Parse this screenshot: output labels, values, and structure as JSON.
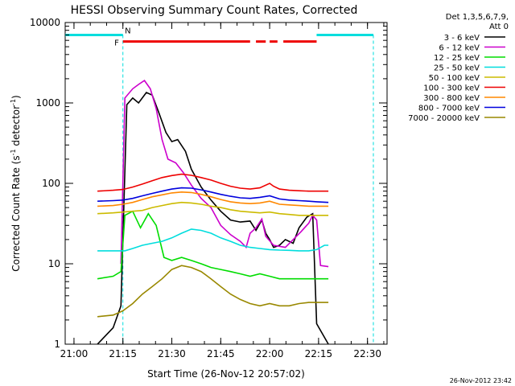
{
  "chart_data": {
    "type": "line",
    "title": "HESSI Observing Summary Count Rates, Corrected",
    "xlabel": "Start Time (26-Nov-12 20:57:02)",
    "ylabel_main": "Corrected Count Rate (s",
    "ylabel_sup1": "-1",
    "ylabel_mid": " detector",
    "ylabel_sup2": "-1",
    "ylabel_end": ")",
    "footer_timestamp": "26-Nov-2012 23:42",
    "y_log": true,
    "ylim": [
      1,
      10000
    ],
    "xlim": [
      20.955,
      22.6
    ],
    "x_ticks": [
      {
        "v": 21.0,
        "label": "21:00"
      },
      {
        "v": 21.25,
        "label": "21:15"
      },
      {
        "v": 21.5,
        "label": "21:30"
      },
      {
        "v": 21.75,
        "label": "21:45"
      },
      {
        "v": 22.0,
        "label": "22:00"
      },
      {
        "v": 22.25,
        "label": "22:15"
      },
      {
        "v": 22.5,
        "label": "22:30"
      }
    ],
    "y_ticks": [
      {
        "v": 1,
        "label": "1"
      },
      {
        "v": 10,
        "label": "10"
      },
      {
        "v": 100,
        "label": "100"
      },
      {
        "v": 1000,
        "label": "1000"
      },
      {
        "v": 10000,
        "label": "10000"
      }
    ],
    "legend_header": [
      "Det 1,3,5,6,7,9,",
      "Att 0"
    ],
    "legend_position": "top-right, outside plot",
    "flag_labels": {
      "F": "F",
      "N": "N"
    },
    "flags": {
      "night_bar": [
        [
          20.955,
          21.25
        ],
        [
          22.24,
          22.53
        ]
      ],
      "night_bar_y": 7000,
      "night_edges": [
        21.25,
        22.53
      ],
      "flare_bar": [
        [
          21.25,
          21.9
        ],
        [
          21.93,
          21.98
        ],
        [
          22.0,
          22.04
        ],
        [
          22.07,
          22.24
        ]
      ],
      "flare_bar_y": 5800,
      "flare_label_x": 21.23,
      "night_label_x": 21.26
    },
    "series": [
      {
        "name": "3 - 6 keV",
        "color": "#000000",
        "points": [
          [
            21.12,
            1
          ],
          [
            21.2,
            1.6
          ],
          [
            21.24,
            3
          ],
          [
            21.27,
            950
          ],
          [
            21.3,
            1150
          ],
          [
            21.33,
            1000
          ],
          [
            21.37,
            1350
          ],
          [
            21.4,
            1250
          ],
          [
            21.43,
            800
          ],
          [
            21.47,
            430
          ],
          [
            21.5,
            330
          ],
          [
            21.53,
            350
          ],
          [
            21.57,
            250
          ],
          [
            21.6,
            150
          ],
          [
            21.65,
            90
          ],
          [
            21.7,
            62
          ],
          [
            21.75,
            45
          ],
          [
            21.8,
            35
          ],
          [
            21.85,
            33
          ],
          [
            21.9,
            34
          ],
          [
            21.93,
            26
          ],
          [
            21.96,
            35
          ],
          [
            21.98,
            24
          ],
          [
            22.0,
            20
          ],
          [
            22.02,
            16
          ],
          [
            22.05,
            17
          ],
          [
            22.08,
            20
          ],
          [
            22.12,
            18
          ],
          [
            22.15,
            28
          ],
          [
            22.19,
            38
          ],
          [
            22.22,
            42
          ],
          [
            22.24,
            1.8
          ],
          [
            22.3,
            1
          ]
        ]
      },
      {
        "name": "6 - 12 keV",
        "color": "#cc00cc",
        "points": [
          [
            21.24,
            10
          ],
          [
            21.26,
            1150
          ],
          [
            21.3,
            1500
          ],
          [
            21.33,
            1700
          ],
          [
            21.36,
            1900
          ],
          [
            21.39,
            1500
          ],
          [
            21.42,
            850
          ],
          [
            21.45,
            350
          ],
          [
            21.48,
            200
          ],
          [
            21.52,
            180
          ],
          [
            21.56,
            135
          ],
          [
            21.6,
            95
          ],
          [
            21.65,
            65
          ],
          [
            21.7,
            50
          ],
          [
            21.75,
            30
          ],
          [
            21.8,
            23
          ],
          [
            21.85,
            19
          ],
          [
            21.88,
            16
          ],
          [
            21.9,
            24
          ],
          [
            21.93,
            28
          ],
          [
            21.96,
            36
          ],
          [
            21.98,
            22
          ],
          [
            22.02,
            17
          ],
          [
            22.08,
            16
          ],
          [
            22.12,
            20
          ],
          [
            22.16,
            25
          ],
          [
            22.2,
            32
          ],
          [
            22.22,
            40
          ],
          [
            22.24,
            35
          ],
          [
            22.26,
            9.5
          ],
          [
            22.3,
            9.2
          ]
        ]
      },
      {
        "name": "12 - 25 keV",
        "color": "#00dd00",
        "points": [
          [
            21.12,
            6.5
          ],
          [
            21.2,
            7
          ],
          [
            21.24,
            8
          ],
          [
            21.26,
            40
          ],
          [
            21.3,
            45
          ],
          [
            21.34,
            28
          ],
          [
            21.38,
            42
          ],
          [
            21.42,
            30
          ],
          [
            21.46,
            12
          ],
          [
            21.5,
            11
          ],
          [
            21.55,
            12
          ],
          [
            21.6,
            11
          ],
          [
            21.65,
            10
          ],
          [
            21.7,
            9
          ],
          [
            21.75,
            8.5
          ],
          [
            21.8,
            8
          ],
          [
            21.85,
            7.5
          ],
          [
            21.9,
            7
          ],
          [
            21.95,
            7.5
          ],
          [
            22.0,
            7
          ],
          [
            22.05,
            6.5
          ],
          [
            22.1,
            6.5
          ],
          [
            22.15,
            6.5
          ],
          [
            22.2,
            6.5
          ],
          [
            22.24,
            6.5
          ],
          [
            22.28,
            6.5
          ],
          [
            22.3,
            6.5
          ]
        ]
      },
      {
        "name": "25 - 50 keV",
        "color": "#00dddd",
        "points": [
          [
            21.12,
            14.5
          ],
          [
            21.26,
            14.5
          ],
          [
            21.3,
            15.5
          ],
          [
            21.35,
            17
          ],
          [
            21.4,
            18
          ],
          [
            21.45,
            19
          ],
          [
            21.5,
            21
          ],
          [
            21.55,
            24
          ],
          [
            21.6,
            27
          ],
          [
            21.65,
            26
          ],
          [
            21.7,
            24
          ],
          [
            21.75,
            21
          ],
          [
            21.8,
            19
          ],
          [
            21.85,
            17
          ],
          [
            21.9,
            16
          ],
          [
            21.95,
            15.5
          ],
          [
            22.0,
            15
          ],
          [
            22.05,
            14.8
          ],
          [
            22.1,
            14.7
          ],
          [
            22.15,
            14.5
          ],
          [
            22.2,
            14.5
          ],
          [
            22.24,
            15
          ],
          [
            22.28,
            17
          ],
          [
            22.3,
            17
          ]
        ]
      },
      {
        "name": "50 - 100 keV",
        "color": "#ccbb00",
        "points": [
          [
            21.12,
            42
          ],
          [
            21.2,
            43
          ],
          [
            21.3,
            45
          ],
          [
            21.35,
            46
          ],
          [
            21.4,
            50
          ],
          [
            21.45,
            53
          ],
          [
            21.5,
            56
          ],
          [
            21.55,
            58
          ],
          [
            21.6,
            57
          ],
          [
            21.65,
            55
          ],
          [
            21.7,
            52
          ],
          [
            21.75,
            50
          ],
          [
            21.8,
            47
          ],
          [
            21.85,
            45
          ],
          [
            21.9,
            44
          ],
          [
            21.95,
            43
          ],
          [
            22.0,
            44
          ],
          [
            22.05,
            42
          ],
          [
            22.1,
            41
          ],
          [
            22.15,
            40
          ],
          [
            22.2,
            40
          ],
          [
            22.24,
            40
          ],
          [
            22.3,
            40
          ]
        ]
      },
      {
        "name": "100 - 300 keV",
        "color": "#ee0000",
        "points": [
          [
            21.12,
            80
          ],
          [
            21.2,
            82
          ],
          [
            21.25,
            84
          ],
          [
            21.3,
            90
          ],
          [
            21.35,
            98
          ],
          [
            21.4,
            108
          ],
          [
            21.45,
            118
          ],
          [
            21.5,
            125
          ],
          [
            21.55,
            130
          ],
          [
            21.6,
            126
          ],
          [
            21.65,
            118
          ],
          [
            21.7,
            110
          ],
          [
            21.75,
            100
          ],
          [
            21.8,
            92
          ],
          [
            21.85,
            87
          ],
          [
            21.9,
            85
          ],
          [
            21.95,
            88
          ],
          [
            22.0,
            100
          ],
          [
            22.02,
            92
          ],
          [
            22.05,
            85
          ],
          [
            22.1,
            82
          ],
          [
            22.15,
            81
          ],
          [
            22.2,
            80
          ],
          [
            22.24,
            80
          ],
          [
            22.3,
            80
          ]
        ]
      },
      {
        "name": "300 - 800 keV",
        "color": "#ff8800",
        "points": [
          [
            21.12,
            52
          ],
          [
            21.2,
            53
          ],
          [
            21.25,
            55
          ],
          [
            21.3,
            58
          ],
          [
            21.35,
            63
          ],
          [
            21.4,
            68
          ],
          [
            21.45,
            72
          ],
          [
            21.5,
            76
          ],
          [
            21.55,
            78
          ],
          [
            21.6,
            77
          ],
          [
            21.65,
            73
          ],
          [
            21.7,
            68
          ],
          [
            21.75,
            63
          ],
          [
            21.8,
            59
          ],
          [
            21.85,
            57
          ],
          [
            21.9,
            56
          ],
          [
            21.95,
            57
          ],
          [
            22.0,
            60
          ],
          [
            22.05,
            55
          ],
          [
            22.1,
            54
          ],
          [
            22.15,
            53
          ],
          [
            22.2,
            52
          ],
          [
            22.24,
            52
          ],
          [
            22.3,
            52
          ]
        ]
      },
      {
        "name": "800 - 7000 keV",
        "color": "#0000dd",
        "points": [
          [
            21.12,
            60
          ],
          [
            21.2,
            61
          ],
          [
            21.25,
            62
          ],
          [
            21.3,
            65
          ],
          [
            21.35,
            70
          ],
          [
            21.4,
            75
          ],
          [
            21.45,
            80
          ],
          [
            21.5,
            85
          ],
          [
            21.55,
            88
          ],
          [
            21.6,
            87
          ],
          [
            21.65,
            83
          ],
          [
            21.7,
            78
          ],
          [
            21.75,
            73
          ],
          [
            21.8,
            69
          ],
          [
            21.85,
            66
          ],
          [
            21.9,
            65
          ],
          [
            21.95,
            67
          ],
          [
            22.0,
            70
          ],
          [
            22.05,
            64
          ],
          [
            22.1,
            62
          ],
          [
            22.15,
            61
          ],
          [
            22.2,
            60
          ],
          [
            22.24,
            59
          ],
          [
            22.3,
            58
          ]
        ]
      },
      {
        "name": "7000 - 20000 keV",
        "color": "#998800",
        "points": [
          [
            21.12,
            2.2
          ],
          [
            21.2,
            2.3
          ],
          [
            21.25,
            2.6
          ],
          [
            21.3,
            3.2
          ],
          [
            21.35,
            4.2
          ],
          [
            21.4,
            5.2
          ],
          [
            21.45,
            6.5
          ],
          [
            21.5,
            8.5
          ],
          [
            21.55,
            9.5
          ],
          [
            21.6,
            9
          ],
          [
            21.65,
            8
          ],
          [
            21.7,
            6.5
          ],
          [
            21.75,
            5.2
          ],
          [
            21.8,
            4.2
          ],
          [
            21.85,
            3.6
          ],
          [
            21.9,
            3.2
          ],
          [
            21.95,
            3
          ],
          [
            22.0,
            3.2
          ],
          [
            22.05,
            3
          ],
          [
            22.1,
            3
          ],
          [
            22.15,
            3.2
          ],
          [
            22.2,
            3.3
          ],
          [
            22.24,
            3.3
          ],
          [
            22.3,
            3.3
          ]
        ]
      }
    ]
  }
}
